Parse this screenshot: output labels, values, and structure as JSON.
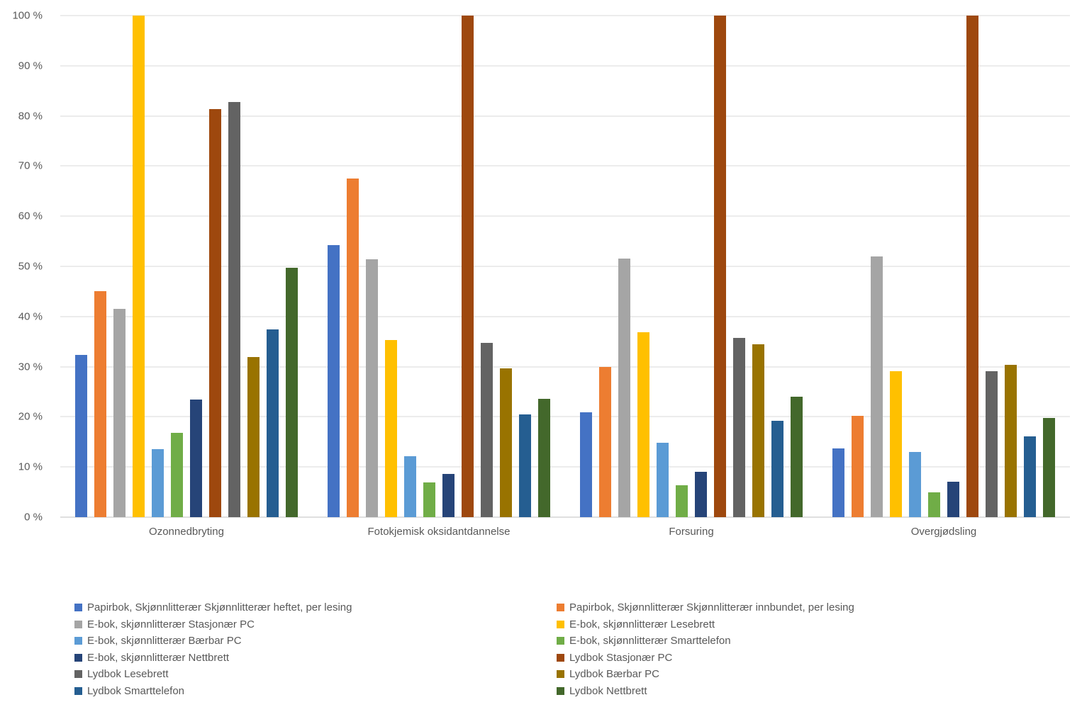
{
  "chart_data": {
    "type": "bar",
    "title": "",
    "xlabel": "",
    "ylabel": "",
    "ylim": [
      0,
      100
    ],
    "grid": true,
    "legend_position": "bottom, two columns",
    "y_ticks": [
      "0 %",
      "10 %",
      "20 %",
      "30 %",
      "40 %",
      "50 %",
      "60 %",
      "70 %",
      "80 %",
      "90 %",
      "100 %"
    ],
    "categories": [
      "Ozonnedbryting",
      "Fotokjemisk oksidantdannelse",
      "Forsuring",
      "Overgjødsling"
    ],
    "series": [
      {
        "name": "Papirbok, Skjønnlitterær Skjønnlitterær heftet, per lesing",
        "color": "#4472C4",
        "values": [
          32.3,
          54.2,
          20.9,
          13.7
        ]
      },
      {
        "name": "Papirbok, Skjønnlitterær Skjønnlitterær innbundet, per lesing",
        "color": "#ED7D31",
        "values": [
          45.0,
          67.5,
          29.9,
          20.2
        ]
      },
      {
        "name": "E-bok, skjønnlitterær Stasjonær PC",
        "color": "#A5A5A5",
        "values": [
          41.5,
          51.4,
          51.5,
          52.0
        ]
      },
      {
        "name": "E-bok, skjønnlitterær Lesebrett",
        "color": "#FFC000",
        "values": [
          100.0,
          35.3,
          36.9,
          29.1
        ]
      },
      {
        "name": "E-bok, skjønnlitterær Bærbar PC",
        "color": "#5B9BD5",
        "values": [
          13.5,
          12.1,
          14.8,
          13.0
        ]
      },
      {
        "name": "E-bok, skjønnlitterær Smarttelefon",
        "color": "#70AD47",
        "values": [
          16.8,
          6.9,
          6.3,
          4.9
        ]
      },
      {
        "name": "E-bok, skjønnlitterær Nettbrett",
        "color": "#264478",
        "values": [
          23.5,
          8.6,
          9.0,
          7.1
        ]
      },
      {
        "name": "Lydbok Stasjonær PC",
        "color": "#9E480E",
        "values": [
          81.3,
          100.0,
          100.0,
          100.0
        ]
      },
      {
        "name": "Lydbok Lesebrett",
        "color": "#636363",
        "values": [
          82.7,
          34.7,
          35.7,
          29.1
        ]
      },
      {
        "name": "Lydbok Bærbar PC",
        "color": "#997300",
        "values": [
          31.9,
          29.7,
          34.4,
          30.3
        ]
      },
      {
        "name": "Lydbok Smarttelefon",
        "color": "#255E91",
        "values": [
          37.5,
          20.5,
          19.2,
          16.1
        ]
      },
      {
        "name": "Lydbok Nettbrett",
        "color": "#43682B",
        "values": [
          49.7,
          23.6,
          24.0,
          19.8
        ]
      }
    ]
  }
}
